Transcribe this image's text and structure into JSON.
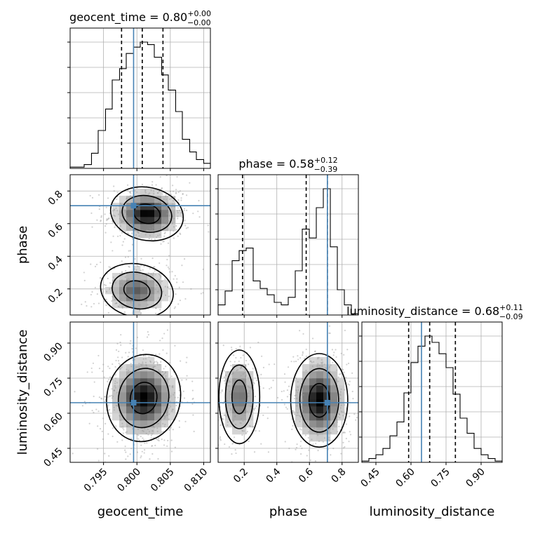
{
  "chart_data": {
    "type": "corner",
    "parameters": [
      {
        "name": "geocent_time",
        "xlabel": "geocent_time",
        "range": [
          0.79,
          0.811
        ],
        "ticks": [
          0.795,
          0.8,
          0.805,
          0.81
        ],
        "tick_labels": [
          "0.795",
          "0.800",
          "0.805",
          "0.810"
        ],
        "truth": 0.7995,
        "quantiles": [
          0.7977,
          0.8008,
          0.8039
        ],
        "title_prefix": "geocent_time = ",
        "title_value": "0.80",
        "title_plus": "+0.00",
        "title_minus": "−0.00",
        "hist_bins": [
          0.79,
          0.7911,
          0.7921,
          0.7932,
          0.7942,
          0.7953,
          0.7963,
          0.7974,
          0.7984,
          0.7995,
          0.8005,
          0.8016,
          0.8026,
          0.8037,
          0.8047,
          0.8058,
          0.8068,
          0.8079,
          0.8089,
          0.81,
          0.811
        ],
        "hist_counts": [
          0.01,
          0.01,
          0.03,
          0.12,
          0.3,
          0.47,
          0.7,
          0.79,
          0.91,
          0.96,
          1.0,
          0.98,
          0.88,
          0.74,
          0.62,
          0.45,
          0.23,
          0.13,
          0.07,
          0.04
        ]
      },
      {
        "name": "phase",
        "xlabel": "phase",
        "ylabel": "phase",
        "range": [
          0.04,
          0.9
        ],
        "ticks": [
          0.2,
          0.4,
          0.6,
          0.8
        ],
        "tick_labels": [
          "0.2",
          "0.4",
          "0.6",
          "0.8"
        ],
        "truth": 0.71,
        "quantiles": [
          0.19,
          0.58,
          0.71
        ],
        "title_prefix": "phase = ",
        "title_value": "0.58",
        "title_plus": "+0.12",
        "title_minus": "−0.39",
        "hist_bins": [
          0.04,
          0.083,
          0.126,
          0.169,
          0.212,
          0.255,
          0.298,
          0.341,
          0.384,
          0.427,
          0.47,
          0.513,
          0.556,
          0.599,
          0.642,
          0.685,
          0.728,
          0.771,
          0.814,
          0.857,
          0.9
        ],
        "hist_counts": [
          0.08,
          0.19,
          0.43,
          0.51,
          0.53,
          0.27,
          0.21,
          0.16,
          0.1,
          0.08,
          0.14,
          0.35,
          0.68,
          0.61,
          0.85,
          1.0,
          0.54,
          0.2,
          0.08,
          0.01
        ]
      },
      {
        "name": "luminosity_distance",
        "xlabel": "luminosity_distance",
        "ylabel": "luminosity_distance",
        "range": [
          0.39,
          0.99
        ],
        "ticks": [
          0.45,
          0.6,
          0.75,
          0.9
        ],
        "tick_labels": [
          "0.45",
          "0.60",
          "0.75",
          "0.90"
        ],
        "truth": 0.645,
        "quantiles": [
          0.59,
          0.68,
          0.79
        ],
        "title_prefix": "luminosity_distance = ",
        "title_value": "0.68",
        "title_plus": "+0.11",
        "title_minus": "−0.09",
        "hist_bins": [
          0.39,
          0.42,
          0.45,
          0.48,
          0.51,
          0.54,
          0.57,
          0.6,
          0.63,
          0.66,
          0.69,
          0.72,
          0.75,
          0.78,
          0.81,
          0.84,
          0.87,
          0.9,
          0.93,
          0.96,
          0.99
        ],
        "hist_counts": [
          0.01,
          0.03,
          0.06,
          0.11,
          0.21,
          0.32,
          0.55,
          0.79,
          0.92,
          1.0,
          0.95,
          0.86,
          0.75,
          0.54,
          0.35,
          0.23,
          0.11,
          0.06,
          0.03,
          0.01
        ]
      }
    ],
    "truth_color": "#4682b4",
    "grid": true,
    "contour_levels": [
      "39%",
      "86%",
      "99%"
    ],
    "pairs": [
      {
        "x": "geocent_time",
        "y": "phase",
        "modes": [
          {
            "cx": 0.8015,
            "cy": 0.66,
            "sx": 0.0022,
            "sy": 0.065,
            "w": 0.62
          },
          {
            "cx": 0.8,
            "cy": 0.19,
            "sx": 0.0022,
            "sy": 0.065,
            "w": 0.38
          }
        ]
      },
      {
        "x": "geocent_time",
        "y": "luminosity_distance",
        "modes": [
          {
            "cx": 0.801,
            "cy": 0.665,
            "sx": 0.0022,
            "sy": 0.075,
            "w": 1.0
          }
        ]
      },
      {
        "x": "phase",
        "y": "luminosity_distance",
        "modes": [
          {
            "cx": 0.66,
            "cy": 0.655,
            "sx": 0.07,
            "sy": 0.08,
            "w": 0.65
          },
          {
            "cx": 0.17,
            "cy": 0.67,
            "sx": 0.05,
            "sy": 0.08,
            "w": 0.35
          }
        ]
      }
    ]
  }
}
